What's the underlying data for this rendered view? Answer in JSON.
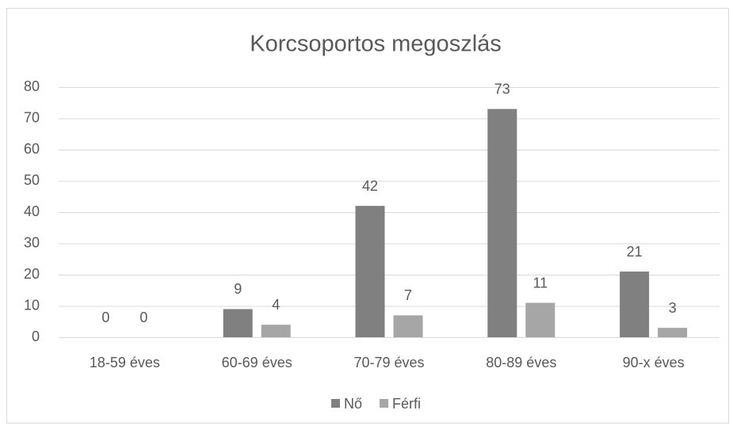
{
  "chart_data": {
    "type": "bar",
    "title": "Korcsoportos megoszlás",
    "categories": [
      "18-59 éves",
      "60-69 éves",
      "70-79 éves",
      "80-89 éves",
      "90-x éves"
    ],
    "series": [
      {
        "name": "Nő",
        "color": "#808080",
        "values": [
          0,
          9,
          42,
          73,
          21
        ]
      },
      {
        "name": "Férfi",
        "color": "#a6a6a6",
        "values": [
          0,
          4,
          7,
          11,
          3
        ]
      }
    ],
    "ylim": [
      0,
      80
    ],
    "yticks": [
      0,
      10,
      20,
      30,
      40,
      50,
      60,
      70,
      80
    ],
    "grid": true,
    "legend": "bottom"
  }
}
